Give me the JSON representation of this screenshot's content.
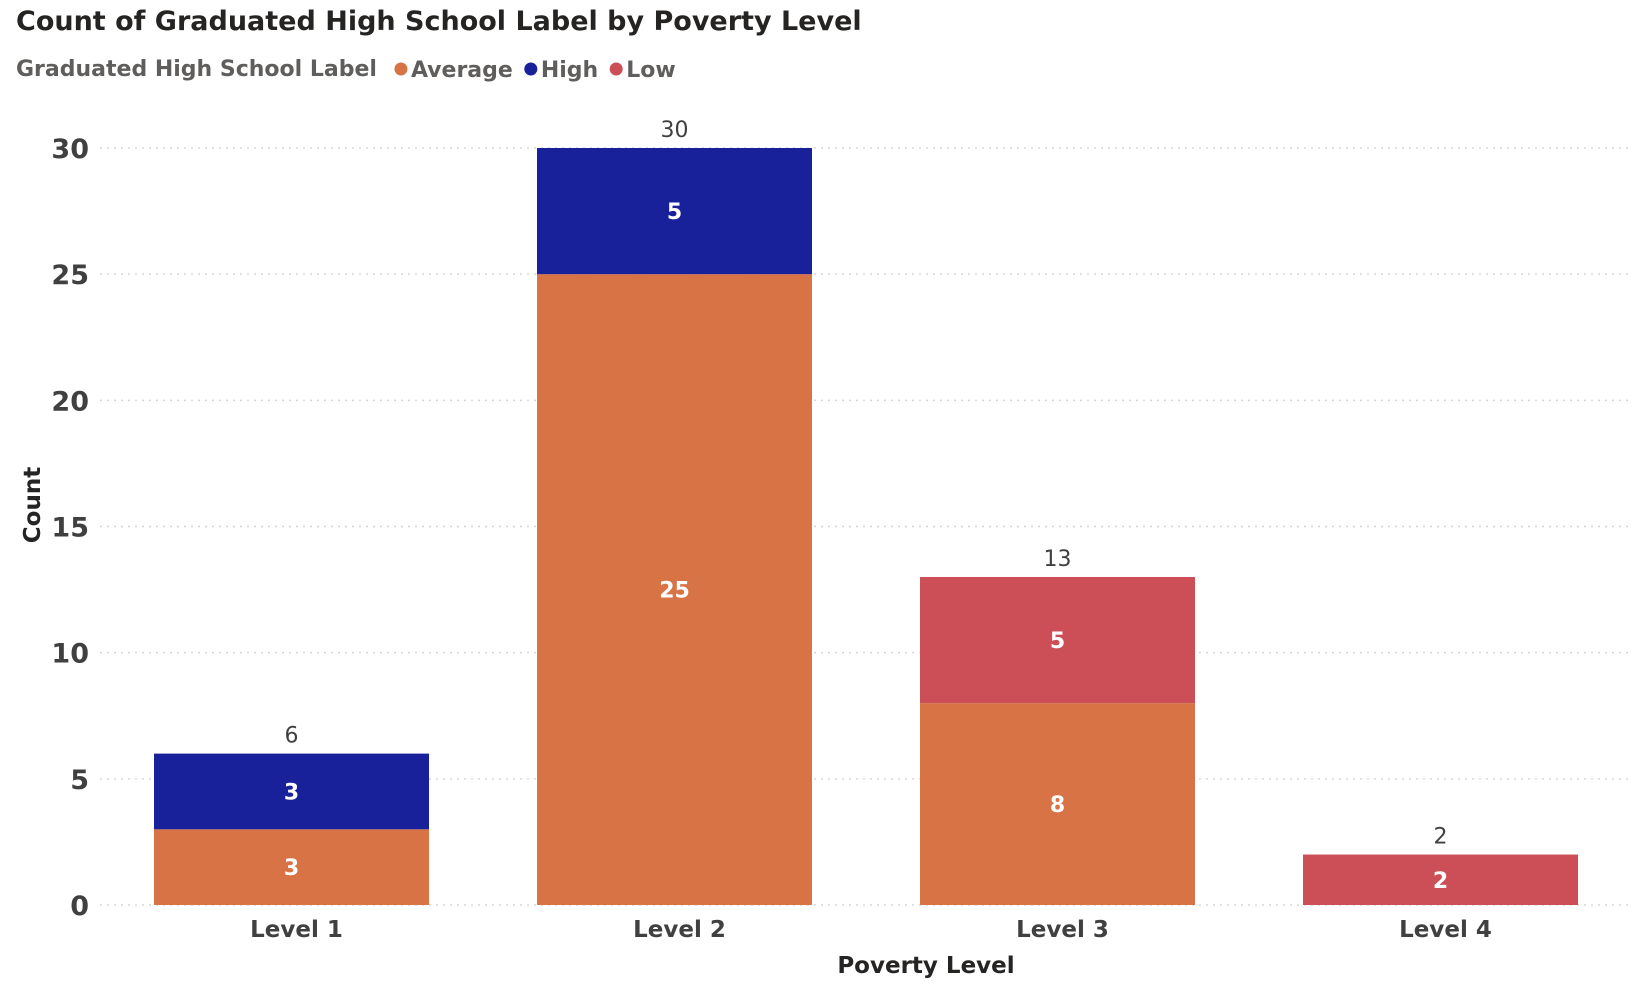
{
  "chart_data": {
    "type": "bar",
    "stacked": true,
    "title": "Count of Graduated High School Label by Poverty Level",
    "legend": {
      "title": "Graduated High School Label",
      "position": "top-left"
    },
    "xlabel": "Poverty Level",
    "ylabel": "Count",
    "categories": [
      "Level 1",
      "Level 2",
      "Level 3",
      "Level 4"
    ],
    "series": [
      {
        "name": "Average",
        "color": "#D87346",
        "values": [
          3,
          25,
          8,
          0
        ]
      },
      {
        "name": "High",
        "color": "#18209A",
        "values": [
          3,
          5,
          0,
          0
        ]
      },
      {
        "name": "Low",
        "color": "#CC4E56",
        "values": [
          0,
          0,
          5,
          2
        ]
      }
    ],
    "totals": [
      6,
      30,
      13,
      2
    ],
    "ylim": [
      0,
      30
    ],
    "yticks": [
      0,
      5,
      10,
      15,
      20,
      25,
      30
    ],
    "grid": true
  }
}
